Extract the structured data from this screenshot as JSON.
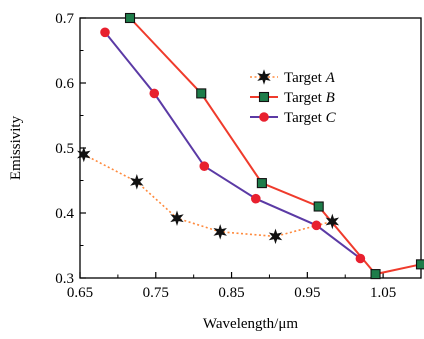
{
  "chart_data": {
    "type": "line",
    "xlabel": "Wavelength/μm",
    "ylabel": "Emissivity",
    "xlim": [
      0.65,
      1.1
    ],
    "ylim": [
      0.3,
      0.7
    ],
    "x_ticks": [
      0.65,
      0.75,
      0.85,
      0.95,
      1.05
    ],
    "x_tick_labels": [
      "0.65",
      "0.75",
      "0.85",
      "0.95",
      "1.05"
    ],
    "y_ticks": [
      0.3,
      0.4,
      0.5,
      0.6,
      0.7
    ],
    "y_tick_labels": [
      "0.3",
      "0.4",
      "0.5",
      "0.6",
      "0.7"
    ],
    "grid": false,
    "legend_position": "top-right",
    "series": [
      {
        "name_prefix": "Target ",
        "name_suffix": "A",
        "color": "#ff8a3d",
        "marker_color": "#111111",
        "marker": "star",
        "line_style": "dotted",
        "points": [
          [
            0.655,
            0.49
          ],
          [
            0.725,
            0.448
          ],
          [
            0.778,
            0.392
          ],
          [
            0.835,
            0.371
          ],
          [
            0.908,
            0.364
          ],
          [
            0.983,
            0.387
          ]
        ]
      },
      {
        "name_prefix": "Target ",
        "name_suffix": "B",
        "color": "#ef3b2c",
        "marker_color": "#1e7d4a",
        "marker": "square",
        "line_style": "solid",
        "points": [
          [
            0.716,
            0.7
          ],
          [
            0.81,
            0.584
          ],
          [
            0.89,
            0.446
          ],
          [
            0.965,
            0.41
          ],
          [
            1.04,
            0.306
          ],
          [
            1.1,
            0.321
          ]
        ]
      },
      {
        "name_prefix": "Target ",
        "name_suffix": "C",
        "color": "#5b3aa5",
        "marker_color": "#e8202f",
        "marker": "circle",
        "line_style": "solid",
        "points": [
          [
            0.683,
            0.678
          ],
          [
            0.748,
            0.584
          ],
          [
            0.814,
            0.472
          ],
          [
            0.882,
            0.422
          ],
          [
            0.962,
            0.381
          ],
          [
            1.02,
            0.33
          ]
        ]
      }
    ]
  }
}
